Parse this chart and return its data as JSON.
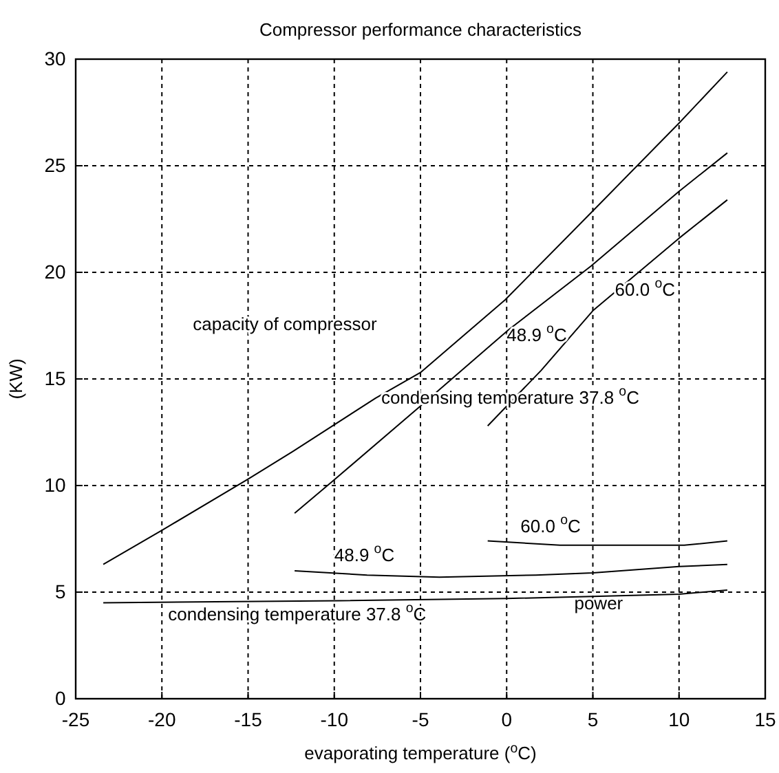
{
  "chart_data": {
    "type": "line",
    "title": "Compressor performance characteristics",
    "xlabel": "evaporating temperature ($^{o}$C)",
    "ylabel": "(KW)",
    "xlim": [
      -25,
      15
    ],
    "xticks": [
      -25,
      -20,
      -15,
      -10,
      -5,
      0,
      5,
      10,
      15
    ],
    "ylim": [
      0,
      30
    ],
    "yticks": [
      0,
      5,
      10,
      15,
      20,
      25,
      30
    ],
    "grid": true,
    "marker": "none",
    "line_style": "solid",
    "series": [
      {
        "color": "#000000",
        "x": [
          -23.4,
          -20,
          -15,
          -12.4,
          -7.6,
          -5,
          -0.1,
          4.9,
          10,
          12.8
        ],
        "values": [
          6.3,
          7.9,
          10.3,
          11.6,
          14.1,
          15.3,
          18.7,
          22.8,
          27,
          29.4
        ]
      },
      {
        "color": "#000000",
        "x": [
          -12.3,
          -10.1,
          -4.9,
          0.1,
          4.9,
          10,
          12.8
        ],
        "values": [
          8.7,
          10.2,
          13.8,
          17.3,
          20.3,
          23.8,
          25.6
        ]
      },
      {
        "color": "#000000",
        "x": [
          -1.1,
          2,
          5,
          10,
          12.8
        ],
        "values": [
          12.8,
          15.4,
          18.2,
          21.6,
          23.4
        ]
      },
      {
        "color": "#000000",
        "x": [
          -23.4,
          -9.7,
          0,
          5,
          10,
          12.8
        ],
        "values": [
          4.5,
          4.6,
          4.7,
          4.8,
          4.9,
          5.1
        ]
      },
      {
        "color": "#000000",
        "x": [
          -12.3,
          -8.1,
          -3.9,
          1.7,
          5,
          10,
          12.8
        ],
        "values": [
          6,
          5.8,
          5.7,
          5.8,
          5.9,
          6.2,
          6.3
        ]
      },
      {
        "color": "#000000",
        "x": [
          -1.1,
          3.1,
          10.3,
          12.8
        ],
        "values": [
          7.4,
          7.2,
          7.2,
          7.4
        ]
      }
    ],
    "annotations": [
      "capacity of compressor",
      "48.9 $^{o}$C",
      "60.0 $^{o}$C",
      "condensing temperature 37.8 $^{o}$C",
      "60.0 $^{o}$C",
      "48.9 $^{o}$C",
      "condensing temperature 37.8 $^{o}$C",
      "power"
    ]
  }
}
